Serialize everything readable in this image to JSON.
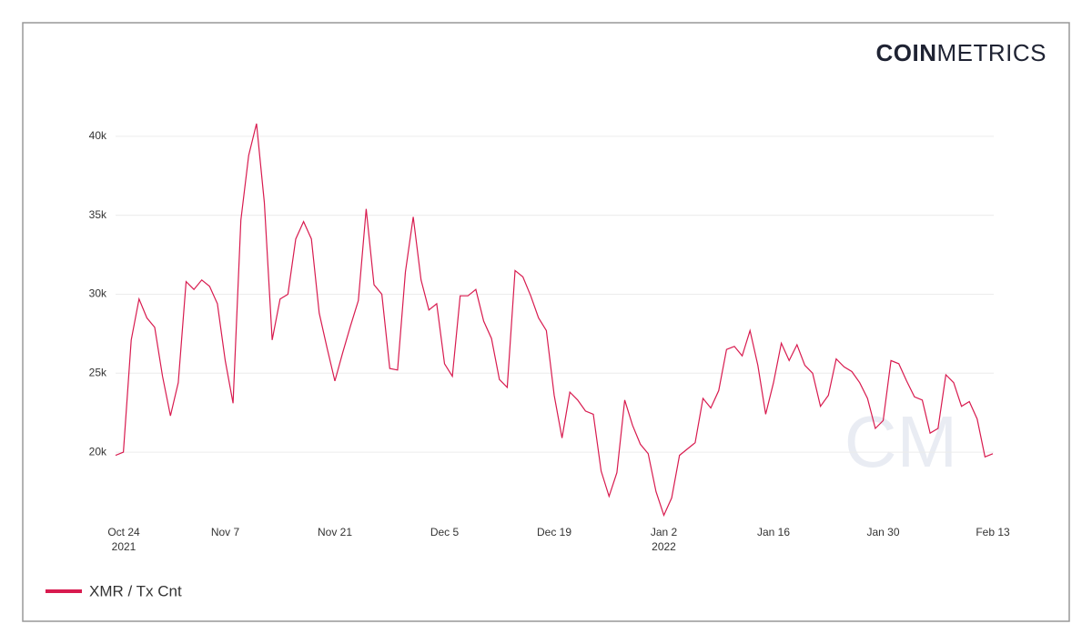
{
  "logo": {
    "bold": "COIN",
    "light": "METRICS",
    "watermark": "CM"
  },
  "chart_data": {
    "type": "line",
    "x": [
      "2021-10-24",
      "2021-10-25",
      "2021-10-26",
      "2021-10-27",
      "2021-10-28",
      "2021-10-29",
      "2021-10-30",
      "2021-10-31",
      "2021-11-01",
      "2021-11-02",
      "2021-11-03",
      "2021-11-04",
      "2021-11-05",
      "2021-11-06",
      "2021-11-07",
      "2021-11-08",
      "2021-11-09",
      "2021-11-10",
      "2021-11-11",
      "2021-11-12",
      "2021-11-13",
      "2021-11-14",
      "2021-11-15",
      "2021-11-16",
      "2021-11-17",
      "2021-11-18",
      "2021-11-19",
      "2021-11-20",
      "2021-11-21",
      "2021-11-22",
      "2021-11-23",
      "2021-11-24",
      "2021-11-25",
      "2021-11-26",
      "2021-11-27",
      "2021-11-28",
      "2021-11-29",
      "2021-11-30",
      "2021-12-01",
      "2021-12-02",
      "2021-12-03",
      "2021-12-04",
      "2021-12-05",
      "2021-12-06",
      "2021-12-07",
      "2021-12-08",
      "2021-12-09",
      "2021-12-10",
      "2021-12-11",
      "2021-12-12",
      "2021-12-13",
      "2021-12-14",
      "2021-12-15",
      "2021-12-16",
      "2021-12-17",
      "2021-12-18",
      "2021-12-19",
      "2021-12-20",
      "2021-12-21",
      "2021-12-22",
      "2021-12-23",
      "2021-12-24",
      "2021-12-25",
      "2021-12-26",
      "2021-12-27",
      "2021-12-28",
      "2021-12-29",
      "2021-12-30",
      "2021-12-31",
      "2022-01-01",
      "2022-01-02",
      "2022-01-03",
      "2022-01-04",
      "2022-01-05",
      "2022-01-06",
      "2022-01-07",
      "2022-01-08",
      "2022-01-09",
      "2022-01-10",
      "2022-01-11",
      "2022-01-12",
      "2022-01-13",
      "2022-01-14",
      "2022-01-15",
      "2022-01-16",
      "2022-01-17",
      "2022-01-18",
      "2022-01-19",
      "2022-01-20",
      "2022-01-21",
      "2022-01-22",
      "2022-01-23",
      "2022-01-24",
      "2022-01-25",
      "2022-01-26",
      "2022-01-27",
      "2022-01-28",
      "2022-01-29",
      "2022-01-30",
      "2022-01-31",
      "2022-02-01",
      "2022-02-02",
      "2022-02-03",
      "2022-02-04",
      "2022-02-05",
      "2022-02-06",
      "2022-02-07",
      "2022-02-08",
      "2022-02-09",
      "2022-02-10",
      "2022-02-11",
      "2022-02-12",
      "2022-02-13"
    ],
    "series": [
      {
        "name": "XMR / Tx Cnt",
        "color": "#d81b4f",
        "values": [
          19800,
          20000,
          27100,
          29700,
          28500,
          27900,
          24800,
          22300,
          24400,
          30800,
          30300,
          30900,
          30500,
          29400,
          25800,
          23100,
          34700,
          38800,
          40800,
          35800,
          27100,
          29700,
          30000,
          33500,
          34600,
          33500,
          28800,
          26600,
          24500,
          26300,
          28000,
          29600,
          35400,
          30600,
          30000,
          25300,
          25200,
          31400,
          34900,
          30900,
          29000,
          29400,
          25600,
          24800,
          29900,
          29900,
          30300,
          28300,
          27200,
          24600,
          24100,
          31500,
          31100,
          29900,
          28500,
          27700,
          23600,
          20900,
          23800,
          23300,
          22600,
          22400,
          18800,
          17200,
          18700,
          23300,
          21700,
          20500,
          19900,
          17500,
          16000,
          17100,
          19800,
          20200,
          20600,
          23400,
          22800,
          23900,
          26500,
          26700,
          26100,
          27700,
          25500,
          22400,
          24400,
          26900,
          25800,
          26800,
          25500,
          25000,
          22900,
          23600,
          25900,
          25400,
          25100,
          24400,
          23400,
          21500,
          22000,
          25800,
          25600,
          24500,
          23500,
          23300,
          21200,
          21500,
          24900,
          24400,
          22900,
          23200,
          22100,
          19700,
          19900
        ]
      }
    ],
    "xlim": [
      "2021-10-24",
      "2022-02-13"
    ],
    "xticks": [
      {
        "value": "2021-10-24",
        "label": "Oct 24",
        "year": "2021"
      },
      {
        "value": "2021-11-07",
        "label": "Nov 7"
      },
      {
        "value": "2021-11-21",
        "label": "Nov 21"
      },
      {
        "value": "2021-12-05",
        "label": "Dec 5"
      },
      {
        "value": "2021-12-19",
        "label": "Dec 19"
      },
      {
        "value": "2022-01-02",
        "label": "Jan 2",
        "year": "2022"
      },
      {
        "value": "2022-01-16",
        "label": "Jan 16"
      },
      {
        "value": "2022-01-30",
        "label": "Jan 30"
      },
      {
        "value": "2022-02-13",
        "label": "Feb 13"
      }
    ],
    "ylim": [
      15800,
      41200
    ],
    "yticks": [
      {
        "value": 20000,
        "label": "20k"
      },
      {
        "value": 25000,
        "label": "25k"
      },
      {
        "value": 30000,
        "label": "30k"
      },
      {
        "value": 35000,
        "label": "35k"
      },
      {
        "value": 40000,
        "label": "40k"
      }
    ],
    "grid": true
  }
}
